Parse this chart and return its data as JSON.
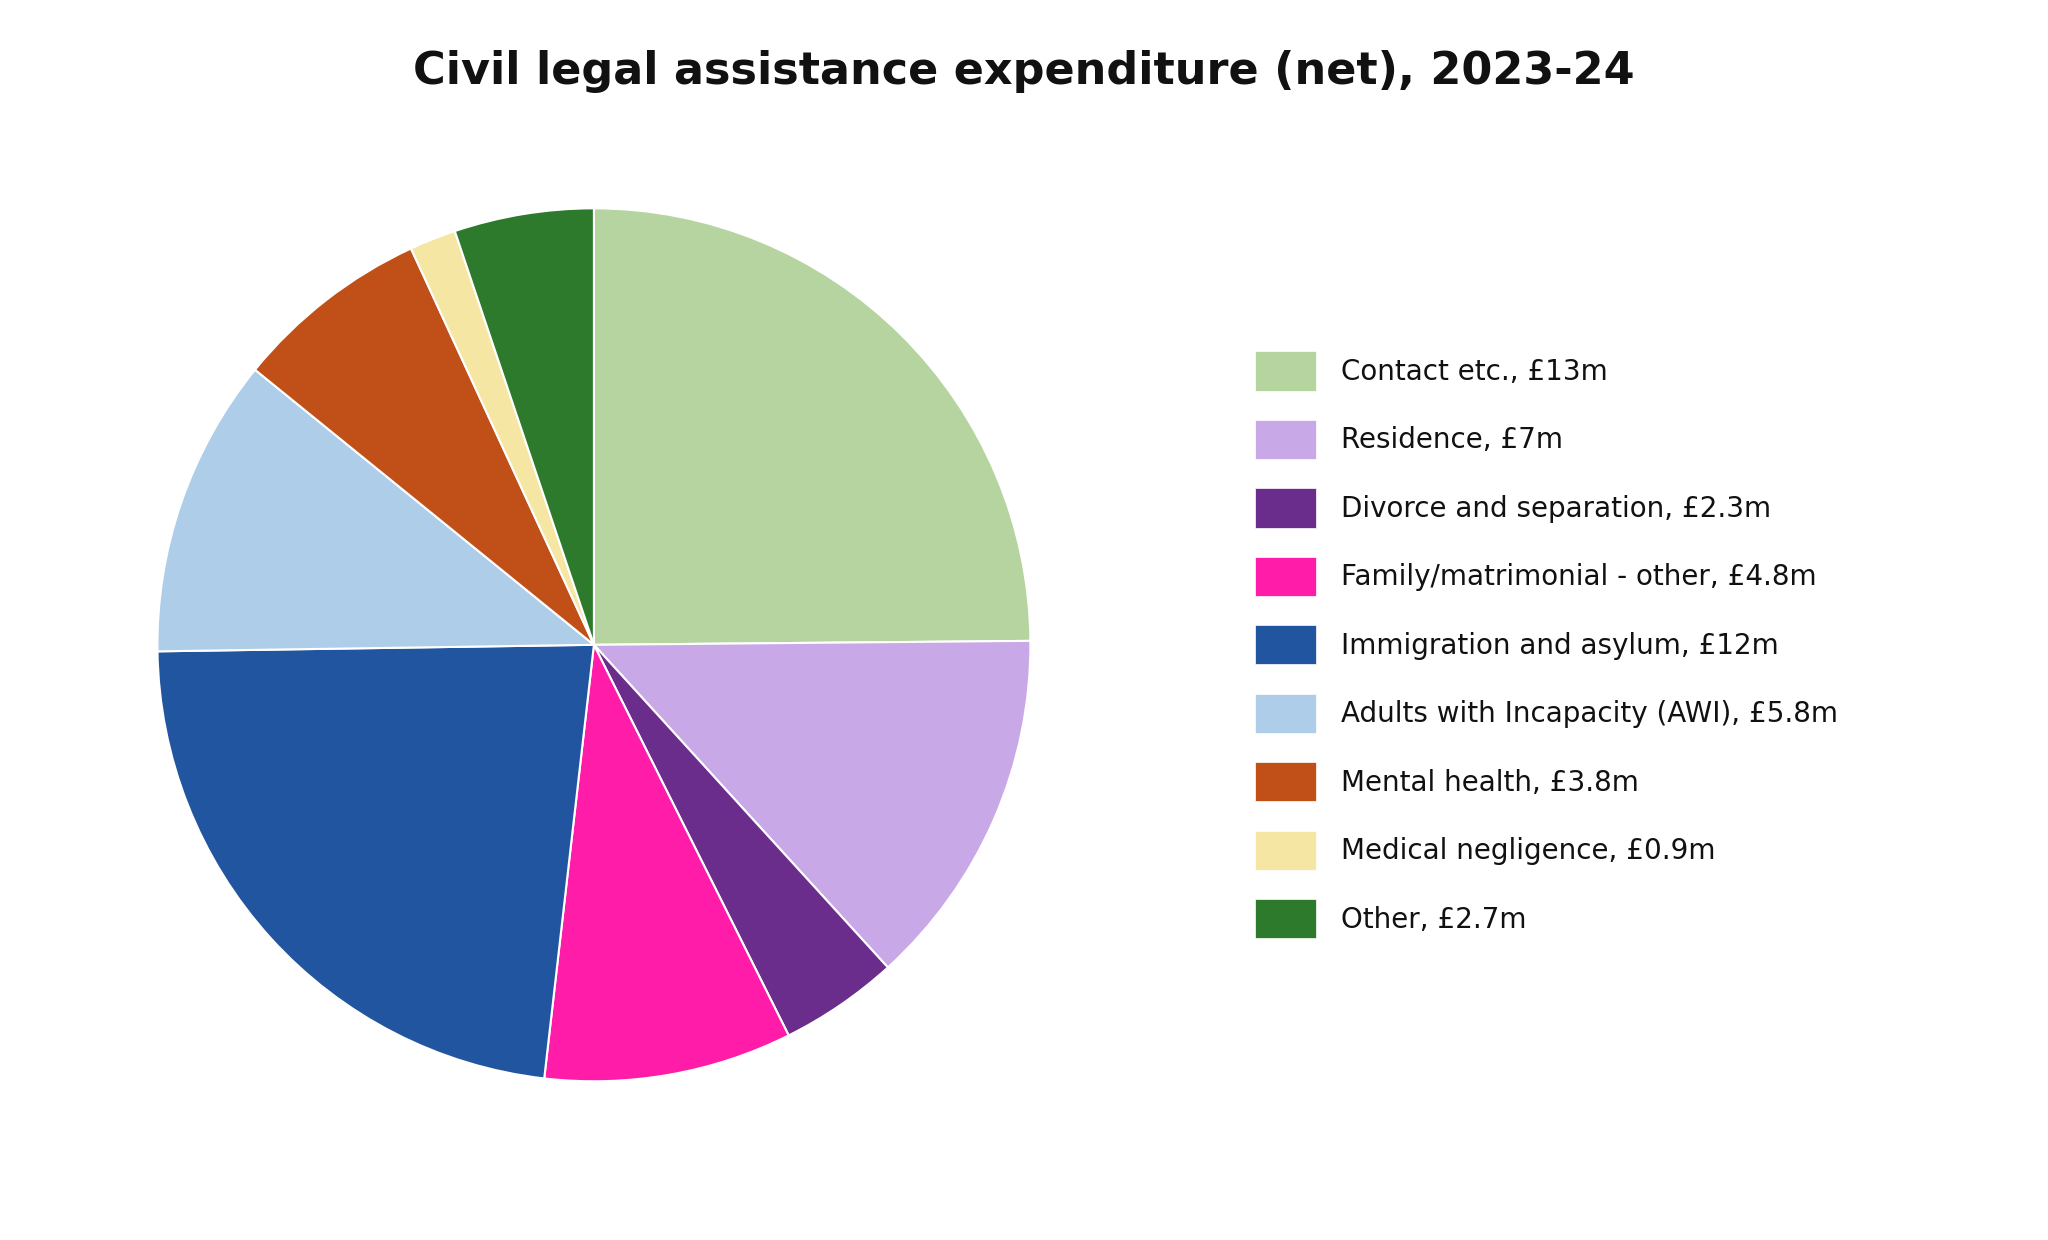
{
  "title": "Civil legal assistance expenditure (net), 2023-24",
  "slices": [
    {
      "label": "Contact etc., £13m",
      "value": 13.0,
      "color": "#b5d4a0"
    },
    {
      "label": "Residence, £7m",
      "value": 7.0,
      "color": "#c9a8e8"
    },
    {
      "label": "Divorce and separation, £2.3m",
      "value": 2.3,
      "color": "#6b2d8b"
    },
    {
      "label": "Family/matrimonial - other, £4.8m",
      "value": 4.8,
      "color": "#ff1ca8"
    },
    {
      "label": "Immigration and asylum, £12m",
      "value": 12.0,
      "color": "#2255a0"
    },
    {
      "label": "Adults with Incapacity (AWI), £5.8m",
      "value": 5.8,
      "color": "#aecde8"
    },
    {
      "label": "Mental health, £3.8m",
      "value": 3.8,
      "color": "#c05018"
    },
    {
      "label": "Medical negligence, £0.9m",
      "value": 0.9,
      "color": "#f5e6a3"
    },
    {
      "label": "Other, £2.7m",
      "value": 2.7,
      "color": "#2d7a2d"
    }
  ],
  "title_fontsize": 32,
  "legend_fontsize": 20,
  "background_color": "#ffffff",
  "startangle": 90
}
